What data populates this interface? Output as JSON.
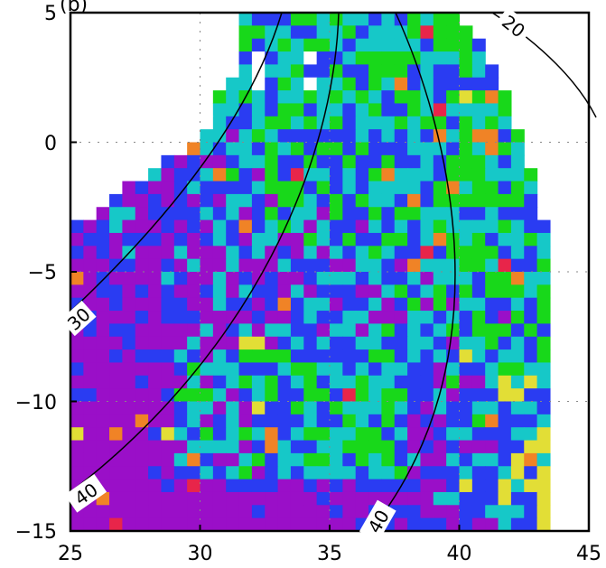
{
  "figure": {
    "panel_title_visible_fragment": "(b)"
  },
  "chart_data": {
    "type": "heatmap",
    "xlim": [
      25,
      45
    ],
    "ylim": [
      -15,
      5
    ],
    "x_ticks": [
      "25",
      "30",
      "35",
      "40",
      "45"
    ],
    "y_ticks": [
      "5",
      "0",
      "−5",
      "−10",
      "−15"
    ],
    "grid": "dotted at tick positions",
    "colors": {
      "purple": "#9a0fc8",
      "blue": "#2a3cf2",
      "cyan": "#16c8c8",
      "green": "#18d81a",
      "yellow": "#e2de36",
      "orange": "#f08326",
      "red": "#e8254a",
      "white": "#ffffff"
    },
    "contours": [
      {
        "value": 20,
        "label": "20"
      },
      {
        "value": 30,
        "label": "30"
      },
      {
        "value": 40,
        "label": "40"
      },
      {
        "value": 40,
        "label": "40"
      }
    ],
    "colored_mask_description": "triangular land region; purple dominant in south-west, blue/cyan/green towards the north and east, yellow/orange/red patches near the east coast"
  }
}
